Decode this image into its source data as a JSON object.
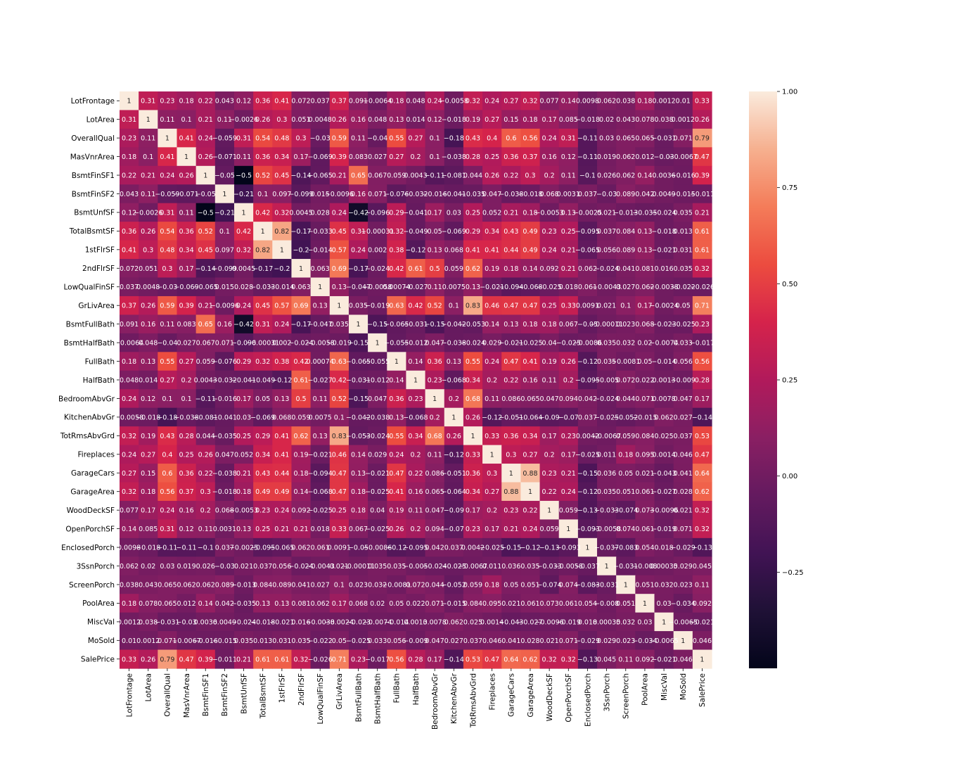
{
  "chart_data": {
    "type": "heatmap",
    "title": "",
    "xlabel": "",
    "ylabel": "",
    "labels": [
      "LotFrontage",
      "LotArea",
      "OverallQual",
      "MasVnrArea",
      "BsmtFinSF1",
      "BsmtFinSF2",
      "BsmtUnfSF",
      "TotalBsmtSF",
      "1stFlrSF",
      "2ndFlrSF",
      "LowQualFinSF",
      "GrLivArea",
      "BsmtFullBath",
      "BsmtHalfBath",
      "FullBath",
      "HalfBath",
      "BedroomAbvGr",
      "KitchenAbvGr",
      "TotRmsAbvGrd",
      "Fireplaces",
      "GarageCars",
      "GarageArea",
      "WoodDeckSF",
      "OpenPorchSF",
      "EnclosedPorch",
      "3SsnPorch",
      "ScreenPorch",
      "PoolArea",
      "MiscVal",
      "MoSold",
      "SalePrice"
    ],
    "colorbar": {
      "range": [
        -0.5,
        1.0
      ],
      "ticks": [
        1.0,
        0.75,
        0.5,
        0.25,
        0.0,
        -0.25
      ],
      "tick_labels": [
        "1.00",
        "0.75",
        "0.50",
        "0.25",
        "0.00",
        "−0.25"
      ]
    },
    "values": [
      [
        1,
        0.31,
        0.23,
        0.18,
        0.22,
        0.043,
        0.12,
        0.36,
        0.41,
        0.072,
        0.037,
        0.37,
        0.091,
        -0.0064,
        0.18,
        0.048,
        0.24,
        -0.0058,
        0.32,
        0.24,
        0.27,
        0.32,
        0.077,
        0.14,
        0.0098,
        0.062,
        0.038,
        0.18,
        0.0012,
        0.01,
        0.33
      ],
      [
        0.31,
        1,
        0.11,
        0.1,
        0.21,
        0.11,
        -0.0026,
        0.26,
        0.3,
        0.051,
        0.0048,
        0.26,
        0.16,
        0.048,
        0.13,
        0.014,
        0.12,
        -0.018,
        0.19,
        0.27,
        0.15,
        0.18,
        0.17,
        0.085,
        -0.018,
        0.02,
        0.043,
        0.078,
        0.038,
        0.0012,
        0.26
      ],
      [
        0.23,
        0.11,
        1,
        0.41,
        0.24,
        -0.059,
        0.31,
        0.54,
        0.48,
        0.3,
        -0.03,
        0.59,
        0.11,
        -0.04,
        0.55,
        0.27,
        0.1,
        -0.18,
        0.43,
        0.4,
        0.6,
        0.56,
        0.24,
        0.31,
        -0.11,
        0.03,
        0.065,
        0.065,
        -0.031,
        0.071,
        0.79
      ],
      [
        0.18,
        0.1,
        0.41,
        1,
        0.26,
        -0.071,
        0.11,
        0.36,
        0.34,
        0.17,
        -0.069,
        0.39,
        0.083,
        0.027,
        0.27,
        0.2,
        0.1,
        -0.038,
        0.28,
        0.25,
        0.36,
        0.37,
        0.16,
        0.12,
        -0.11,
        0.019,
        0.062,
        0.012,
        -0.03,
        -0.0067,
        0.47
      ],
      [
        0.22,
        0.21,
        0.24,
        0.26,
        1,
        -0.05,
        -0.5,
        0.52,
        0.45,
        -0.14,
        -0.065,
        0.21,
        0.65,
        0.067,
        0.059,
        0.0043,
        -0.11,
        -0.081,
        0.044,
        0.26,
        0.22,
        0.3,
        0.2,
        0.11,
        -0.1,
        0.026,
        0.062,
        0.14,
        0.0036,
        -0.016,
        0.39
      ],
      [
        0.043,
        0.11,
        -0.059,
        -0.071,
        -0.05,
        1,
        -0.21,
        0.1,
        0.097,
        -0.099,
        0.015,
        -0.0096,
        0.16,
        0.071,
        -0.076,
        -0.032,
        -0.016,
        -0.041,
        -0.035,
        0.047,
        -0.038,
        -0.018,
        0.068,
        0.0031,
        0.037,
        -0.03,
        0.089,
        0.042,
        0.0049,
        -0.015,
        -0.011
      ],
      [
        0.12,
        -0.0026,
        0.31,
        0.11,
        -0.5,
        -0.21,
        1,
        0.42,
        0.32,
        0.0045,
        0.028,
        0.24,
        -0.42,
        -0.096,
        0.29,
        -0.041,
        0.17,
        0.03,
        0.25,
        0.052,
        0.21,
        0.18,
        -0.0053,
        0.13,
        -0.0025,
        0.021,
        -0.013,
        -0.035,
        -0.024,
        0.035,
        0.21
      ],
      [
        0.36,
        0.26,
        0.54,
        0.36,
        0.52,
        0.1,
        0.42,
        1,
        0.82,
        -0.17,
        -0.033,
        0.45,
        0.31,
        -0.00031,
        0.32,
        -0.049,
        0.05,
        -0.069,
        0.29,
        0.34,
        0.43,
        0.49,
        0.23,
        0.25,
        -0.095,
        0.037,
        0.084,
        0.13,
        -0.018,
        0.013,
        0.61
      ],
      [
        0.41,
        0.3,
        0.48,
        0.34,
        0.45,
        0.097,
        0.32,
        0.82,
        1,
        -0.2,
        -0.014,
        0.57,
        0.24,
        0.002,
        0.38,
        -0.12,
        0.13,
        0.068,
        0.41,
        0.41,
        0.44,
        0.49,
        0.24,
        0.21,
        -0.065,
        0.056,
        0.089,
        0.13,
        -0.021,
        0.031,
        0.61
      ],
      [
        0.072,
        0.051,
        0.3,
        0.17,
        -0.14,
        -0.099,
        0.0045,
        -0.17,
        -0.2,
        1,
        0.063,
        0.69,
        -0.17,
        -0.024,
        0.42,
        0.61,
        0.5,
        0.059,
        0.62,
        0.19,
        0.18,
        0.14,
        0.092,
        0.21,
        0.062,
        -0.024,
        0.041,
        0.081,
        0.016,
        0.035,
        0.32
      ],
      [
        0.037,
        0.0048,
        -0.03,
        -0.069,
        -0.065,
        0.015,
        0.028,
        -0.033,
        -0.014,
        0.063,
        1,
        0.13,
        -0.047,
        -0.0058,
        0.00074,
        -0.027,
        0.11,
        0.0075,
        0.13,
        -0.021,
        -0.094,
        -0.068,
        -0.025,
        0.018,
        0.061,
        -0.0043,
        0.027,
        0.062,
        -0.0038,
        -0.022,
        -0.026
      ],
      [
        0.37,
        0.26,
        0.59,
        0.39,
        0.21,
        -0.0096,
        0.24,
        0.45,
        0.57,
        0.69,
        0.13,
        1,
        0.035,
        -0.019,
        0.63,
        0.42,
        0.52,
        0.1,
        0.83,
        0.46,
        0.47,
        0.47,
        0.25,
        0.33,
        0.0091,
        0.021,
        0.1,
        0.17,
        -0.0024,
        0.05,
        0.71
      ],
      [
        0.091,
        0.16,
        0.11,
        0.083,
        0.65,
        0.16,
        -0.42,
        0.31,
        0.24,
        -0.17,
        -0.047,
        0.035,
        1,
        -0.15,
        -0.065,
        -0.031,
        -0.15,
        -0.042,
        -0.053,
        0.14,
        0.13,
        0.18,
        0.18,
        0.067,
        -0.05,
        -0.00011,
        0.023,
        0.068,
        -0.023,
        -0.025,
        0.23
      ],
      [
        -0.0064,
        0.048,
        -0.04,
        0.027,
        0.067,
        0.071,
        -0.096,
        -0.00031,
        0.002,
        -0.024,
        -0.0058,
        -0.019,
        -0.15,
        1,
        -0.055,
        -0.012,
        0.047,
        -0.038,
        -0.024,
        0.029,
        -0.021,
        -0.025,
        0.04,
        -0.025,
        -0.0086,
        0.035,
        0.032,
        0.02,
        -0.0074,
        0.033,
        -0.017
      ],
      [
        0.18,
        0.13,
        0.55,
        0.27,
        0.059,
        -0.076,
        0.29,
        0.32,
        0.38,
        0.42,
        0.00074,
        0.63,
        -0.065,
        -0.055,
        1,
        0.14,
        0.36,
        0.13,
        0.55,
        0.24,
        0.47,
        0.41,
        0.19,
        0.26,
        -0.12,
        0.035,
        -0.0081,
        0.05,
        -0.014,
        0.056,
        0.56
      ],
      [
        0.048,
        0.014,
        0.27,
        0.2,
        0.0043,
        -0.032,
        -0.041,
        -0.049,
        -0.12,
        0.61,
        -0.027,
        0.42,
        -0.031,
        -0.012,
        0.14,
        1,
        0.23,
        -0.068,
        0.34,
        0.2,
        0.22,
        0.16,
        0.11,
        0.2,
        -0.095,
        -0.005,
        0.072,
        0.022,
        0.0013,
        -0.009,
        0.28
      ],
      [
        0.24,
        0.12,
        0.1,
        0.1,
        -0.11,
        -0.016,
        0.17,
        0.05,
        0.13,
        0.5,
        0.11,
        0.52,
        -0.15,
        0.047,
        0.36,
        0.23,
        1,
        0.2,
        0.68,
        0.11,
        0.086,
        0.065,
        0.047,
        0.094,
        0.042,
        -0.024,
        0.044,
        0.071,
        0.0078,
        0.047,
        0.17
      ],
      [
        -0.0058,
        -0.018,
        -0.18,
        -0.038,
        -0.081,
        -0.041,
        0.03,
        -0.069,
        0.068,
        0.059,
        0.0075,
        0.1,
        -0.042,
        -0.038,
        0.13,
        -0.068,
        0.2,
        1,
        0.26,
        -0.12,
        -0.051,
        -0.064,
        -0.09,
        -0.07,
        0.037,
        -0.025,
        -0.052,
        -0.015,
        0.062,
        0.027,
        -0.14
      ],
      [
        0.32,
        0.19,
        0.43,
        0.28,
        0.044,
        -0.035,
        0.25,
        0.29,
        0.41,
        0.62,
        0.13,
        0.83,
        -0.053,
        -0.024,
        0.55,
        0.34,
        0.68,
        0.26,
        1,
        0.33,
        0.36,
        0.34,
        0.17,
        0.23,
        0.0042,
        -0.0067,
        0.059,
        0.084,
        0.025,
        0.037,
        0.53
      ],
      [
        0.24,
        0.27,
        0.4,
        0.25,
        0.26,
        0.047,
        0.052,
        0.34,
        0.41,
        0.19,
        -0.021,
        0.46,
        0.14,
        0.029,
        0.24,
        0.2,
        0.11,
        -0.12,
        0.33,
        1,
        0.3,
        0.27,
        0.2,
        0.17,
        -0.025,
        0.011,
        0.18,
        0.095,
        0.0014,
        0.046,
        0.47
      ],
      [
        0.27,
        0.15,
        0.6,
        0.36,
        0.22,
        -0.038,
        0.21,
        0.43,
        0.44,
        0.18,
        -0.094,
        0.47,
        0.13,
        -0.021,
        0.47,
        0.22,
        0.086,
        -0.051,
        0.36,
        0.3,
        1,
        0.88,
        0.23,
        0.21,
        -0.15,
        0.036,
        0.05,
        0.021,
        -0.043,
        0.041,
        0.64
      ],
      [
        0.32,
        0.18,
        0.56,
        0.37,
        0.3,
        -0.018,
        0.18,
        0.49,
        0.49,
        0.14,
        -0.068,
        0.47,
        0.18,
        -0.025,
        0.41,
        0.16,
        0.065,
        -0.064,
        0.34,
        0.27,
        0.88,
        1,
        0.22,
        0.24,
        -0.12,
        0.035,
        0.051,
        0.061,
        -0.027,
        0.028,
        0.62
      ],
      [
        0.077,
        0.17,
        0.24,
        0.16,
        0.2,
        0.068,
        -0.0053,
        0.23,
        0.24,
        0.092,
        -0.025,
        0.25,
        0.18,
        0.04,
        0.19,
        0.11,
        0.047,
        -0.09,
        0.17,
        0.2,
        0.23,
        0.22,
        1,
        0.059,
        -0.13,
        -0.033,
        -0.074,
        0.073,
        -0.0096,
        0.021,
        0.32
      ],
      [
        0.14,
        0.085,
        0.31,
        0.12,
        0.11,
        0.0031,
        0.13,
        0.25,
        0.21,
        0.21,
        0.018,
        0.33,
        0.067,
        -0.025,
        0.26,
        0.2,
        0.094,
        -0.07,
        0.23,
        0.17,
        0.21,
        0.24,
        0.059,
        1,
        -0.093,
        -0.0058,
        0.074,
        0.061,
        -0.019,
        0.071,
        0.32
      ],
      [
        0.0098,
        -0.018,
        -0.11,
        -0.11,
        -0.1,
        0.037,
        -0.0025,
        -0.095,
        -0.065,
        0.062,
        0.061,
        0.0091,
        -0.05,
        -0.0086,
        -0.12,
        -0.095,
        0.042,
        0.037,
        0.0042,
        -0.025,
        -0.15,
        -0.12,
        -0.13,
        -0.093,
        1,
        -0.037,
        -0.083,
        0.054,
        0.018,
        -0.029,
        -0.13
      ],
      [
        0.062,
        0.02,
        0.03,
        0.019,
        0.026,
        -0.03,
        0.021,
        0.037,
        0.056,
        -0.024,
        -0.0043,
        0.021,
        -0.00011,
        0.035,
        0.035,
        -0.005,
        -0.024,
        -0.025,
        -0.0067,
        0.011,
        0.036,
        0.035,
        -0.033,
        -0.0058,
        -0.037,
        1,
        -0.031,
        -0.008,
        0.00035,
        0.029,
        0.045
      ],
      [
        0.038,
        0.043,
        0.065,
        0.062,
        0.062,
        0.089,
        -0.013,
        0.084,
        0.089,
        0.041,
        0.027,
        0.1,
        0.023,
        0.032,
        -0.0081,
        0.072,
        0.044,
        -0.052,
        0.059,
        0.18,
        0.05,
        0.051,
        -0.074,
        0.074,
        -0.083,
        -0.031,
        1,
        0.051,
        0.032,
        0.023,
        0.11
      ],
      [
        0.18,
        0.078,
        0.065,
        0.012,
        0.14,
        0.042,
        -0.035,
        0.13,
        0.13,
        0.081,
        0.062,
        0.17,
        0.068,
        0.02,
        0.05,
        0.022,
        0.071,
        -0.015,
        0.084,
        0.095,
        0.021,
        0.061,
        0.073,
        0.061,
        0.054,
        -0.008,
        0.051,
        1,
        0.03,
        -0.034,
        0.092
      ],
      [
        0.0012,
        0.038,
        -0.031,
        -0.03,
        0.0036,
        0.0049,
        -0.024,
        -0.018,
        -0.021,
        0.016,
        -0.0038,
        -0.0024,
        -0.023,
        -0.0074,
        -0.014,
        0.0013,
        0.0078,
        0.062,
        0.025,
        0.0014,
        -0.043,
        -0.027,
        -0.0096,
        -0.019,
        0.018,
        0.00035,
        0.032,
        0.03,
        1,
        -0.0065,
        -0.021
      ],
      [
        0.01,
        0.0012,
        0.071,
        -0.0067,
        -0.016,
        -0.015,
        0.035,
        0.013,
        0.031,
        0.035,
        -0.022,
        0.05,
        -0.025,
        0.033,
        0.056,
        -0.009,
        0.047,
        0.027,
        0.037,
        0.046,
        0.041,
        0.028,
        0.021,
        0.071,
        -0.029,
        0.029,
        0.023,
        -0.034,
        -0.0065,
        1,
        0.046
      ],
      [
        0.33,
        0.26,
        0.79,
        0.47,
        0.39,
        -0.011,
        0.21,
        0.61,
        0.61,
        0.32,
        -0.026,
        0.71,
        0.23,
        -0.017,
        0.56,
        0.28,
        0.17,
        -0.14,
        0.53,
        0.47,
        0.64,
        0.62,
        0.32,
        0.32,
        -0.13,
        0.045,
        0.11,
        0.092,
        -0.021,
        0.046,
        1
      ]
    ]
  }
}
